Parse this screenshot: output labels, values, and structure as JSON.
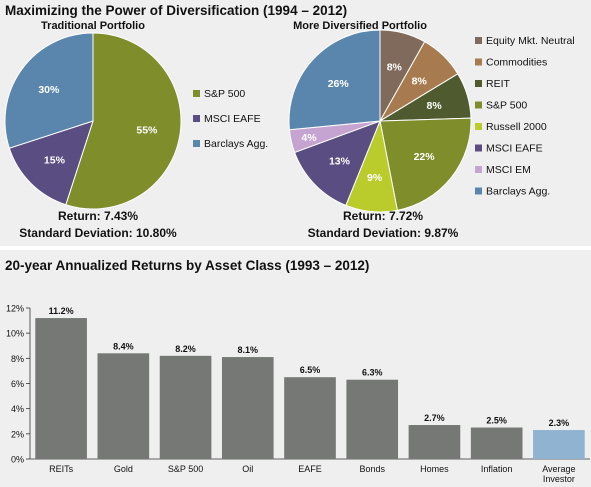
{
  "colors": {
    "equity_mkt_neutral": "#7f6a5c",
    "commodities": "#a77b4f",
    "reit": "#4f5b2e",
    "sp500": "#7f8d2b",
    "russell2000": "#b9cc2c",
    "msci_eafe": "#5a4d81",
    "msci_em": "#c5a4d1",
    "barclays_agg": "#5a86ad",
    "bar_default": "#757874",
    "bar_highlight": "#8fb3d0",
    "panel_bg": "#efefef"
  },
  "top": {
    "title": "Maximizing the Power of Diversification (1994 – 2012)"
  },
  "bottom": {
    "title": "20-year Annualized Returns by Asset Class (1993 – 2012)"
  },
  "chart_data": [
    {
      "type": "pie",
      "title": "Traditional Portfolio",
      "slices": [
        {
          "label": "S&P 500",
          "value": 55,
          "display": "55%",
          "color_key": "sp500"
        },
        {
          "label": "MSCI EAFE",
          "value": 15,
          "display": "15%",
          "color_key": "msci_eafe"
        },
        {
          "label": "Barclays Agg.",
          "value": 30,
          "display": "30%",
          "color_key": "barclays_agg"
        }
      ],
      "legend": [
        "S&P 500",
        "MSCI EAFE",
        "Barclays Agg."
      ],
      "return_text": "Return: 7.43%",
      "stdev_text": "Standard Deviation: 10.80%"
    },
    {
      "type": "pie",
      "title": "More Diversified Portfolio",
      "slices": [
        {
          "label": "Equity Mkt. Neutral",
          "value": 8,
          "display": "8%",
          "color_key": "equity_mkt_neutral"
        },
        {
          "label": "Commodities",
          "value": 8,
          "display": "8%",
          "color_key": "commodities"
        },
        {
          "label": "REIT",
          "value": 8,
          "display": "8%",
          "color_key": "reit"
        },
        {
          "label": "S&P 500",
          "value": 22,
          "display": "22%",
          "color_key": "sp500"
        },
        {
          "label": "Russell 2000",
          "value": 9,
          "display": "9%",
          "color_key": "russell2000"
        },
        {
          "label": "MSCI EAFE",
          "value": 13,
          "display": "13%",
          "color_key": "msci_eafe"
        },
        {
          "label": "MSCI EM",
          "value": 4,
          "display": "4%",
          "color_key": "msci_em"
        },
        {
          "label": "Barclays Agg.",
          "value": 26,
          "display": "26%",
          "color_key": "barclays_agg"
        }
      ],
      "legend": [
        "Equity Mkt. Neutral",
        "Commodities",
        "REIT",
        "S&P 500",
        "Russell 2000",
        "MSCI EAFE",
        "MSCI EM",
        "Barclays Agg."
      ],
      "return_text": "Return: 7.72%",
      "stdev_text": "Standard Deviation: 9.87%"
    },
    {
      "type": "bar",
      "title": "20-year Annualized Returns by Asset Class (1993 – 2012)",
      "categories": [
        "REITs",
        "Gold",
        "S&P 500",
        "Oil",
        "EAFE",
        "Bonds",
        "Homes",
        "Inflation",
        "Average Investor"
      ],
      "category_lines": [
        [
          "REITs"
        ],
        [
          "Gold"
        ],
        [
          "S&P 500"
        ],
        [
          "Oil"
        ],
        [
          "EAFE"
        ],
        [
          "Bonds"
        ],
        [
          "Homes"
        ],
        [
          "Inflation"
        ],
        [
          "Average",
          "Investor"
        ]
      ],
      "values": [
        11.2,
        8.4,
        8.2,
        8.1,
        6.5,
        6.3,
        2.7,
        2.5,
        2.3
      ],
      "value_labels": [
        "11.2%",
        "8.4%",
        "8.2%",
        "8.1%",
        "6.5%",
        "6.3%",
        "2.7%",
        "2.5%",
        "2.3%"
      ],
      "highlight_index": 8,
      "ylim": [
        0,
        12
      ],
      "yticks": [
        0,
        2,
        4,
        6,
        8,
        10,
        12
      ],
      "ytick_labels": [
        "0%",
        "2%",
        "4%",
        "6%",
        "8%",
        "10%",
        "12%"
      ],
      "grid": false
    }
  ]
}
